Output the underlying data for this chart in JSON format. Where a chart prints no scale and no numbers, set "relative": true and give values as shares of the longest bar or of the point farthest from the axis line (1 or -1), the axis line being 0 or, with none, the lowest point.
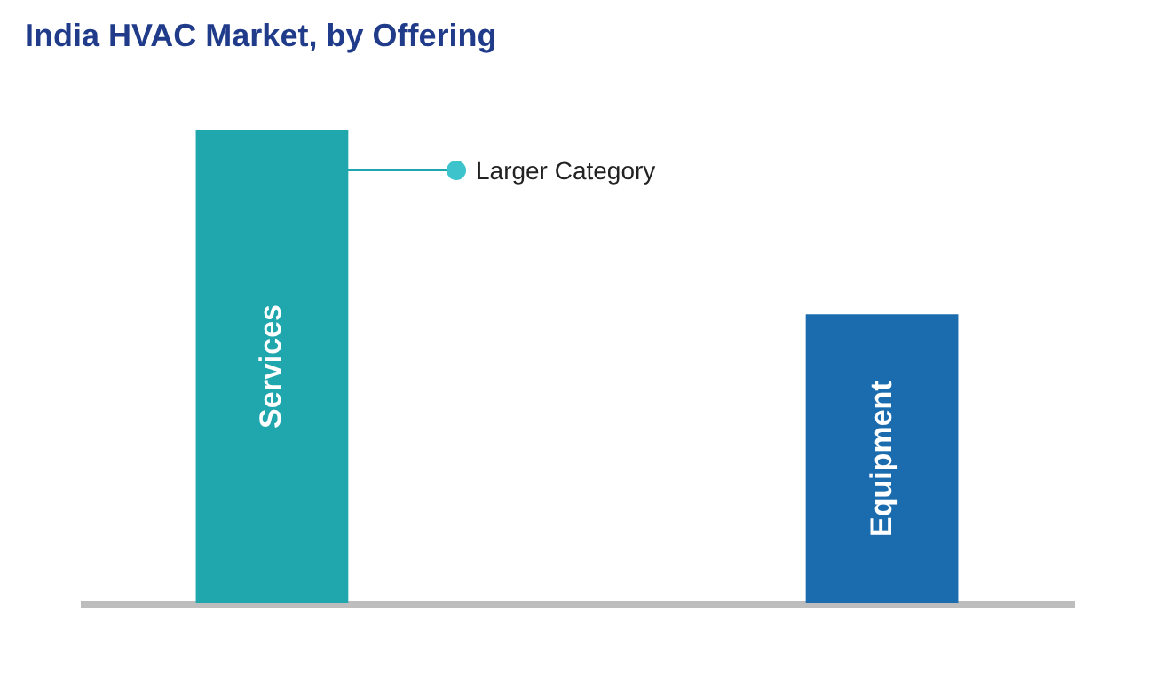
{
  "chart_data": {
    "type": "bar",
    "title": "India HVAC Market, by Offering",
    "categories": [
      "Services",
      "Equipment"
    ],
    "values": [
      1,
      0.61
    ],
    "colors": [
      "#20a7ad",
      "#1b6cae"
    ],
    "relative": true,
    "annotations": [
      "Larger Category"
    ]
  }
}
